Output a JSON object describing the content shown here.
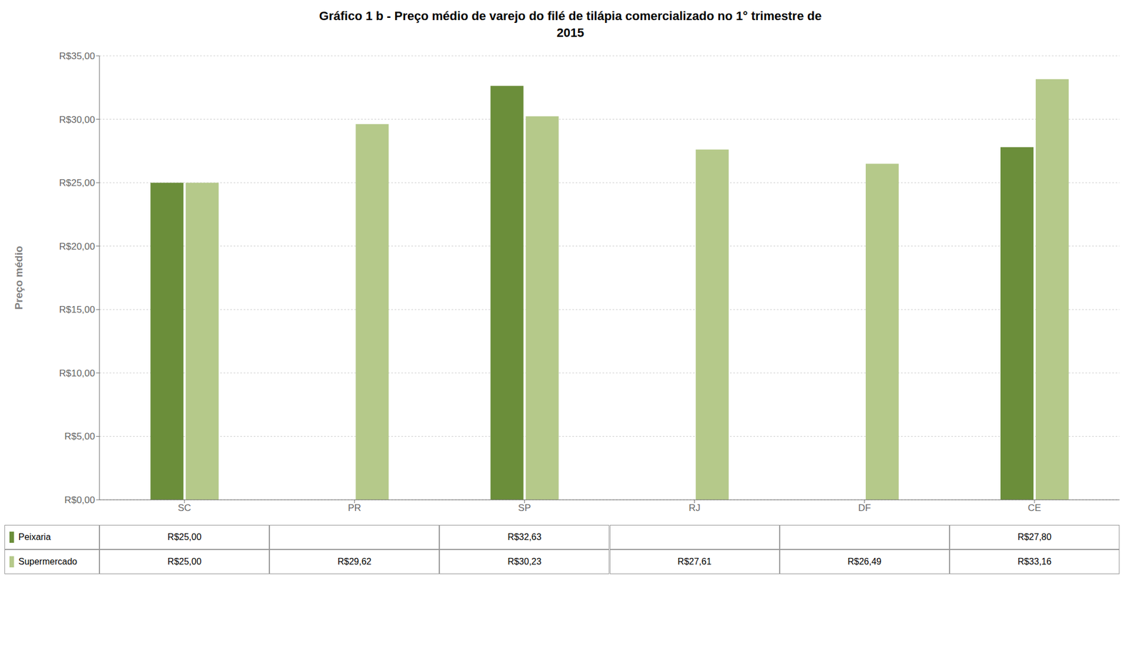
{
  "chart_data": {
    "type": "bar",
    "title": "Gráfico 1 b - Preço médio de varejo do filé de tilápia comercializado no 1° trimestre de\n2015",
    "ylabel": "Preço médio",
    "categories": [
      "SC",
      "PR",
      "SP",
      "RJ",
      "DF",
      "CE"
    ],
    "series": [
      {
        "name": "Peixaria",
        "color": "#6b8e3a",
        "values": [
          25.0,
          null,
          32.63,
          null,
          null,
          27.8
        ],
        "value_labels": [
          "R$25,00",
          null,
          "R$32,63",
          null,
          null,
          "R$27,80"
        ]
      },
      {
        "name": "Supermercado",
        "color": "#b5c98a",
        "values": [
          25.0,
          29.62,
          30.23,
          27.61,
          26.49,
          33.16
        ],
        "value_labels": [
          "R$25,00",
          "R$29,62",
          "R$30,23",
          "R$27,61",
          "R$26,49",
          "R$33,16"
        ]
      }
    ],
    "ylim": [
      0,
      35
    ],
    "yticks": [
      {
        "value": 0,
        "label": "R$0,00"
      },
      {
        "value": 5,
        "label": "R$5,00"
      },
      {
        "value": 10,
        "label": "R$10,00"
      },
      {
        "value": 15,
        "label": "R$15,00"
      },
      {
        "value": 20,
        "label": "R$20,00"
      },
      {
        "value": 25,
        "label": "R$25,00"
      },
      {
        "value": 30,
        "label": "R$30,00"
      },
      {
        "value": 35,
        "label": "R$35,00"
      }
    ],
    "grid": true
  }
}
